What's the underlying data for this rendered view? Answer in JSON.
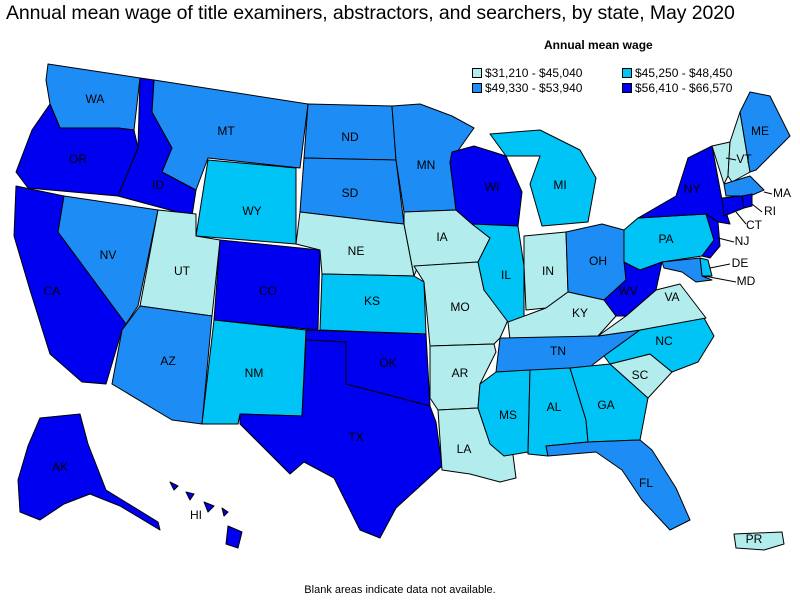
{
  "title": "Annual mean wage of title examiners, abstractors, and searchers, by state, May 2020",
  "legend": {
    "title": "Annual mean wage",
    "bins": [
      {
        "label": "$31,210 - $45,040",
        "color": "#b2ecec"
      },
      {
        "label": "$45,250 - $48,450",
        "color": "#00c4f5"
      },
      {
        "label": "$49,330 - $53,940",
        "color": "#1e8cf5"
      },
      {
        "label": "$56,410 - $66,570",
        "color": "#0000f0"
      }
    ]
  },
  "footnote": "Blank areas indicate data not available.",
  "states": {
    "WA": 2,
    "OR": 3,
    "CA": 3,
    "NV": 2,
    "ID": 3,
    "MT": 2,
    "WY": 1,
    "UT": 0,
    "AZ": 2,
    "NM": 1,
    "CO": 3,
    "ND": 2,
    "SD": 2,
    "NE": 0,
    "KS": 1,
    "OK": 3,
    "TX": 3,
    "MN": 2,
    "IA": 0,
    "MO": 0,
    "AR": 0,
    "LA": 0,
    "WI": 3,
    "IL": 1,
    "MI": 1,
    "IN": 0,
    "OH": 2,
    "KY": 0,
    "TN": 2,
    "MS": 1,
    "AL": 1,
    "GA": 1,
    "FL": 2,
    "SC": 0,
    "NC": 1,
    "VA": 0,
    "WV": 3,
    "PA": 1,
    "NY": 3,
    "VT": 0,
    "NH": 0,
    "ME": 2,
    "MA": 2,
    "RI": 3,
    "CT": 3,
    "NJ": 3,
    "DE": 1,
    "MD": 2,
    "AK": 3,
    "HI": 3,
    "PR": 0
  }
}
